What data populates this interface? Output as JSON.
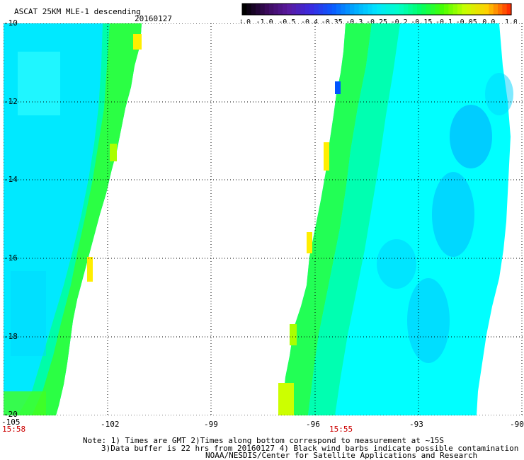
{
  "title": "ASCAT 25KM MLE-1 descending",
  "date": "20160127",
  "colorbar": {
    "labels": [
      "-3.0",
      "-1.0",
      "-0.5",
      "-0.4",
      "-0.35",
      "-0.3",
      "-0.25",
      "-0.2",
      "-0.15",
      "-0.1",
      "-0.05",
      "0.0",
      "1.0"
    ],
    "colors": [
      "#000000",
      "#3a0a5a",
      "#5a1aa0",
      "#3a2ae0",
      "#0a5aff",
      "#00aaff",
      "#00e5ff",
      "#00ffc8",
      "#00ff64",
      "#48ff00",
      "#c8ff00",
      "#ffd000",
      "#ff3000"
    ]
  },
  "map": {
    "lat_labels": [
      "-10",
      "-12",
      "-14",
      "-16",
      "-18",
      "-20"
    ],
    "lon_labels": [
      "-105",
      "-102",
      "-99",
      "-96",
      "-93",
      "-90"
    ],
    "time_labels": [
      "15:58",
      "15:55"
    ]
  },
  "notes": {
    "line1": "Note: 1) Times are GMT 2)Times along bottom correspond to measurement at ~15S",
    "line2": "3)Data buffer is 22 hrs from 20160127 4) Black wind barbs indicate possible contamination",
    "line3": "NOAA/NESDIS/Center for Satellite Applications and Research"
  },
  "colors": {
    "cyan": "#00ffff",
    "light_blue": "#00e0ff",
    "blue": "#00aaff",
    "green": "#00ff44",
    "lime": "#aaff00",
    "yellow": "#ffee00",
    "orange": "#ff9900"
  }
}
